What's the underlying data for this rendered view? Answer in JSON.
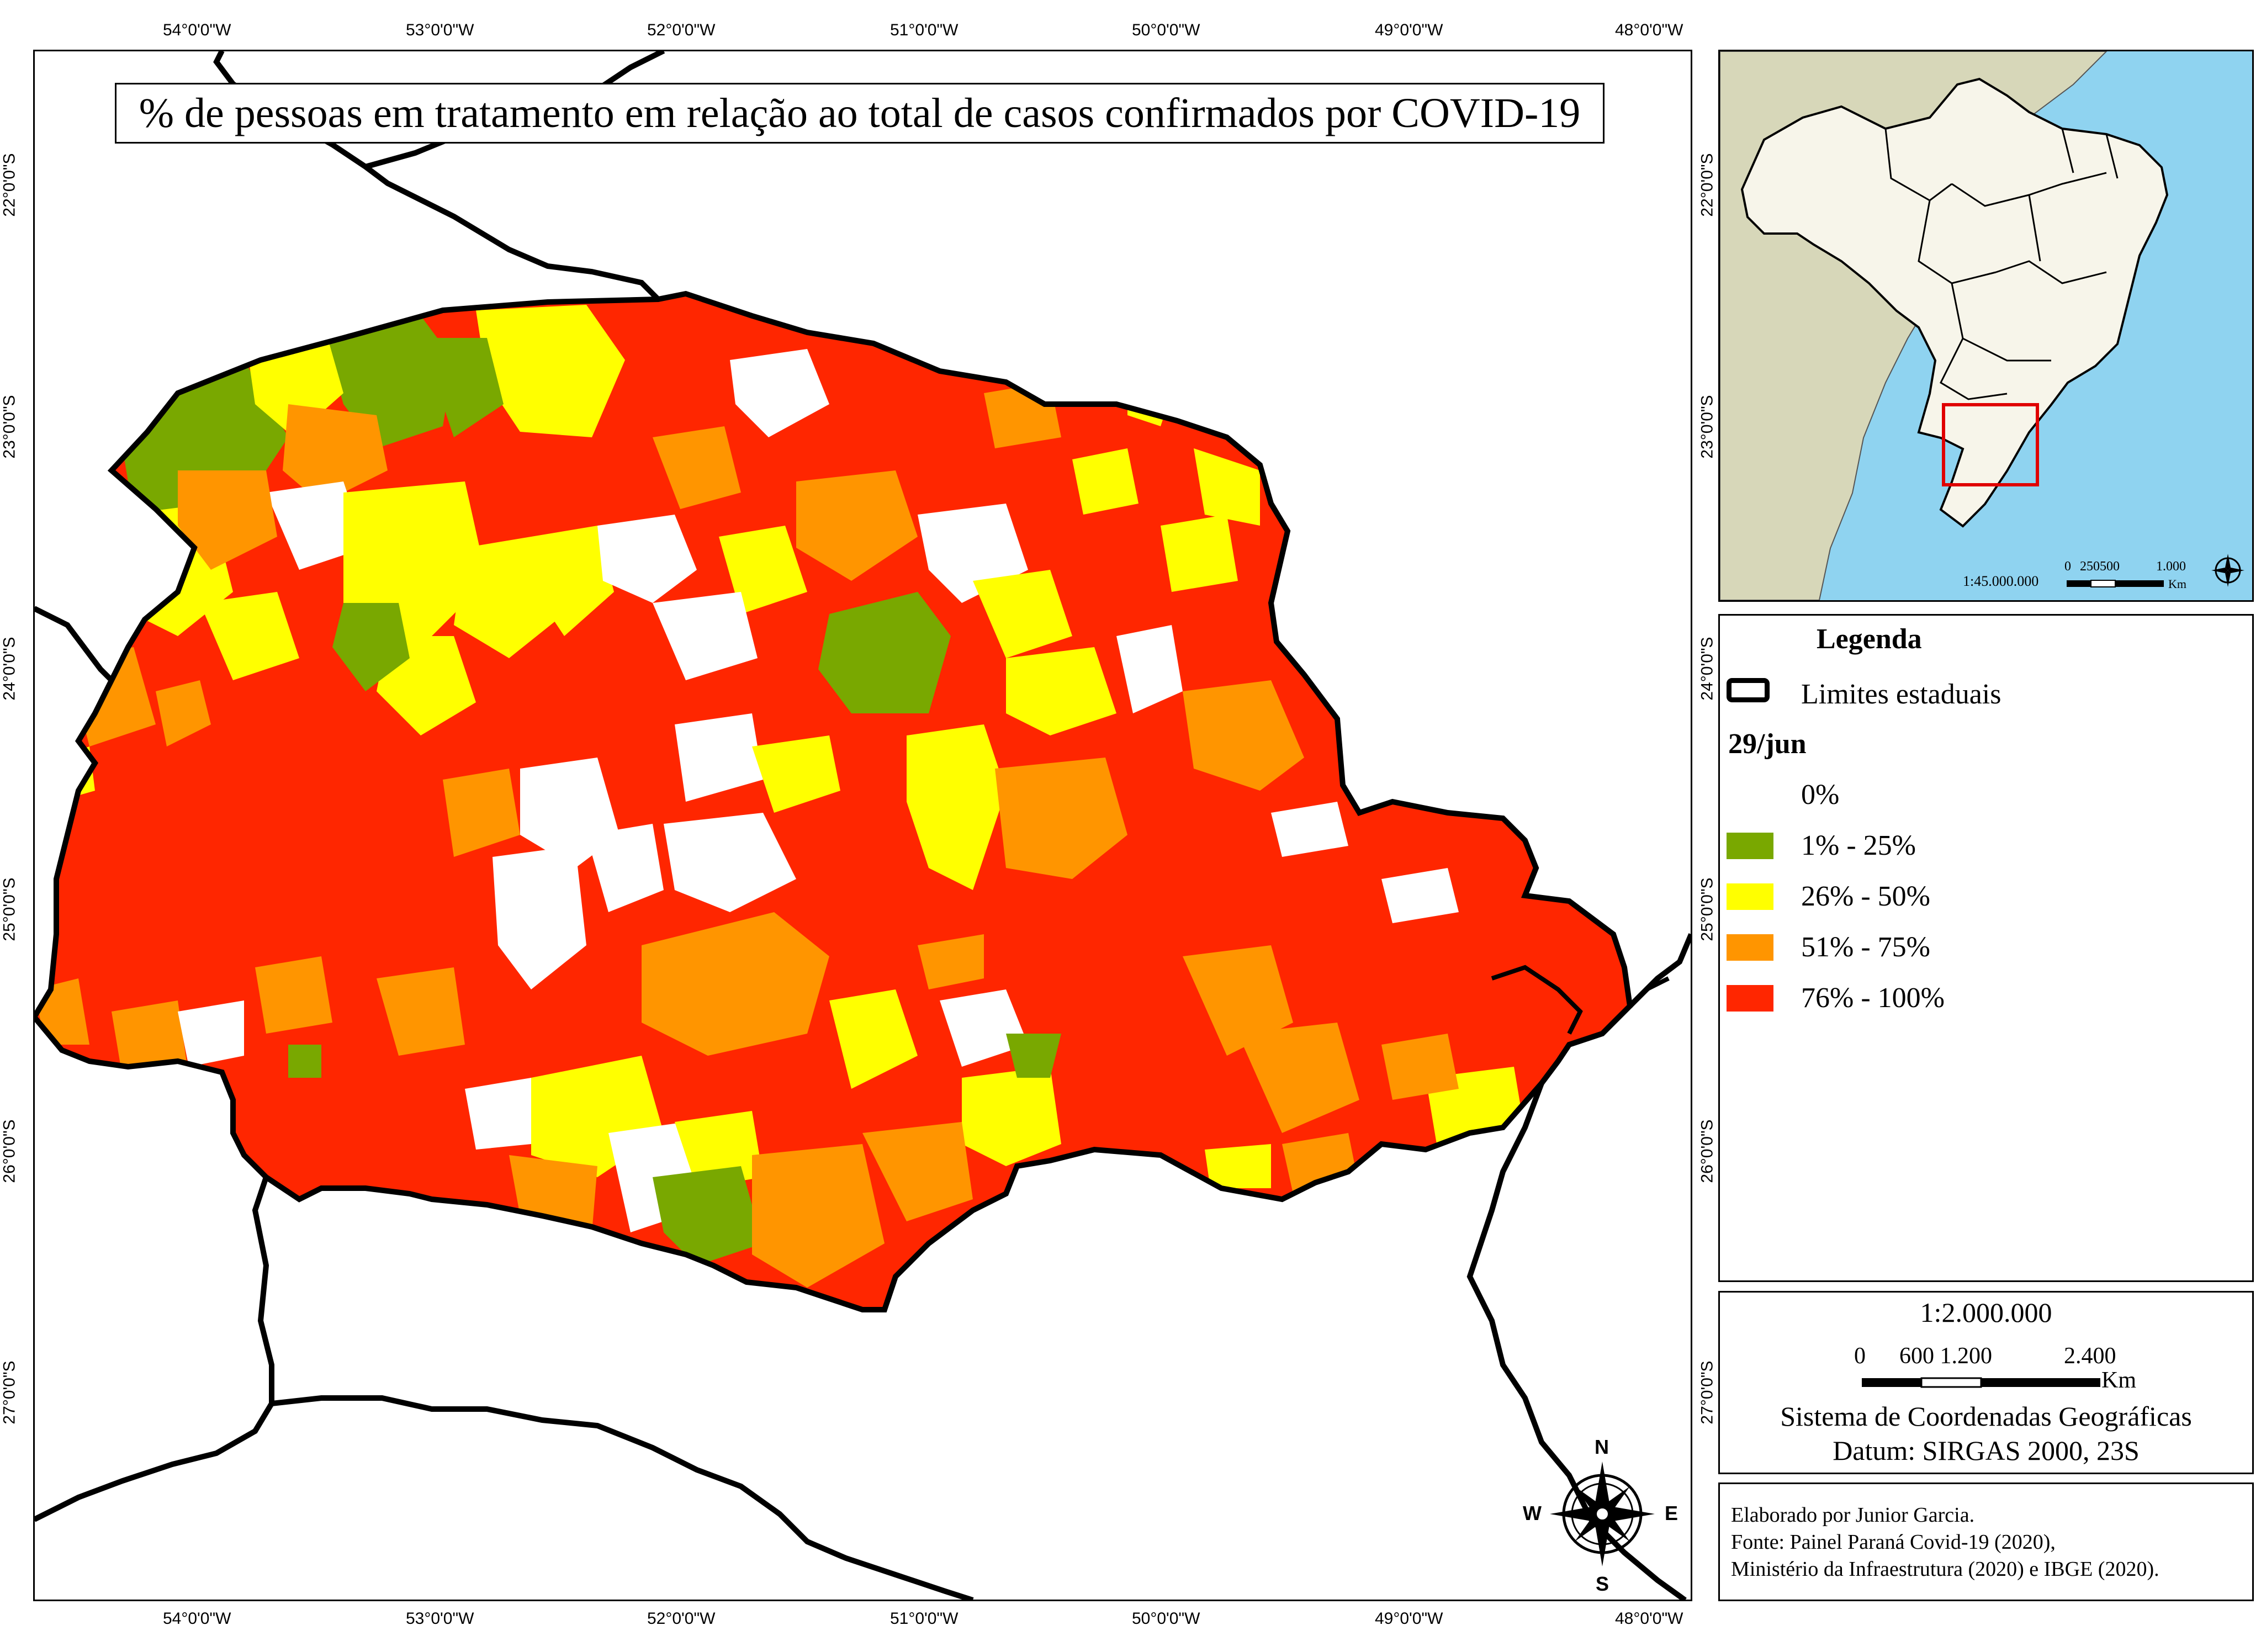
{
  "title": "% de pessoas em tratamento em relação ao total de casos confirmados por COVID-19",
  "axes": {
    "top_lon_labels": [
      "54°0'0\"W",
      "53°0'0\"W",
      "52°0'0\"W",
      "51°0'0\"W",
      "50°0'0\"W",
      "49°0'0\"W",
      "48°0'0\"W"
    ],
    "bottom_lon_labels": [
      "54°0'0\"W",
      "53°0'0\"W",
      "52°0'0\"W",
      "51°0'0\"W",
      "50°0'0\"W",
      "49°0'0\"W",
      "48°0'0\"W"
    ],
    "left_lat_labels": [
      "22°0'0\"S",
      "23°0'0\"S",
      "24°0'0\"S",
      "25°0'0\"S",
      "26°0'0\"S",
      "27°0'0\"S"
    ],
    "right_lat_labels": [
      "22°0'0\"S",
      "23°0'0\"S",
      "24°0'0\"S",
      "25°0'0\"S",
      "26°0'0\"S",
      "27°0'0\"S"
    ]
  },
  "colors": {
    "class_0": "#ffffff",
    "class_1_25": "#79a800",
    "class_26_50": "#ffff00",
    "class_51_75": "#ff9500",
    "class_76_100": "#ff2600",
    "boundary": "#000000",
    "ocean": "#8fd3f0",
    "south_america_land": "#d7d7b9",
    "brazil_land": "#f7f5ea",
    "inset_highlight": "#e00000"
  },
  "legend": {
    "title": "Legenda",
    "boundary_label": "Limites estaduais",
    "date_label": "29/jun",
    "classes": [
      {
        "label": "0%",
        "color": "#ffffff"
      },
      {
        "label": "1% - 25%",
        "color": "#79a800"
      },
      {
        "label": "26% - 50%",
        "color": "#ffff00"
      },
      {
        "label": "51% - 75%",
        "color": "#ff9500"
      },
      {
        "label": "76% - 100%",
        "color": "#ff2600"
      }
    ]
  },
  "north_arrow": {
    "n": "N",
    "s": "S",
    "e": "E",
    "w": "W"
  },
  "inset": {
    "scale": "1:45.000.000",
    "scalebar_labels": [
      "0",
      "250500",
      "1.000"
    ],
    "unit": "Km"
  },
  "scale_panel": {
    "scale": "1:2.000.000",
    "scalebar_labels": [
      "0",
      "600 1.200",
      "2.400"
    ],
    "unit": "Km",
    "crs": "Sistema de Coordenadas Geográficas",
    "datum": "Datum: SIRGAS 2000, 23S"
  },
  "credits": [
    "Elaborado por Junior Garcia.",
    "Fonte: Painel Paraná Covid-19 (2020),",
    "Ministério da Infraestrutura (2020) e IBGE (2020)."
  ]
}
